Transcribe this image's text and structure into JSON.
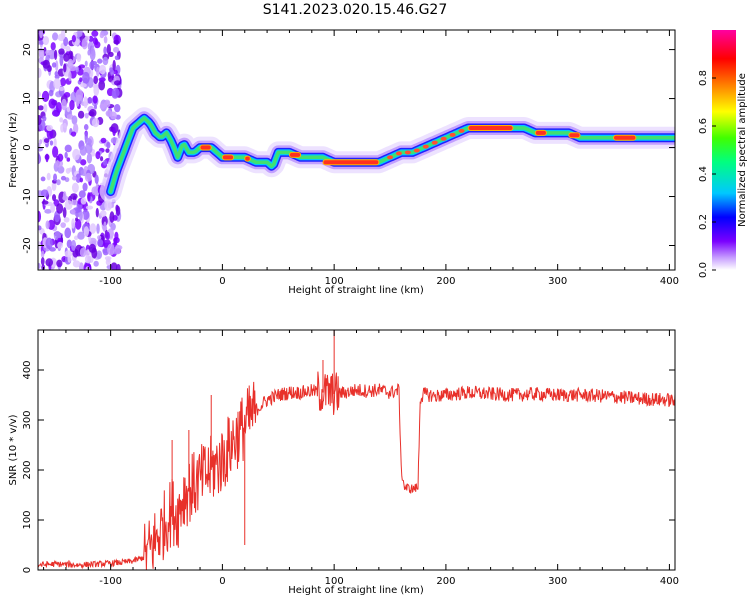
{
  "figure": {
    "title": "S141.2023.020.15.46.G27"
  },
  "chart_data": [
    {
      "type": "heatmap",
      "title": "S141.2023.020.15.46.G27",
      "xlabel": "Height of straight line (km)",
      "ylabel": "Frequency (Hz)",
      "xlim": [
        -165,
        405
      ],
      "ylim": [
        -25,
        24
      ],
      "x_ticks": [
        -100,
        0,
        100,
        200,
        300,
        400
      ],
      "x_tick_labels": [
        "-100",
        "0",
        "100",
        "200",
        "300",
        "400"
      ],
      "y_ticks": [
        -20,
        -10,
        0,
        10,
        20
      ],
      "y_tick_labels": [
        "-20",
        "-10",
        "0",
        "10",
        "20"
      ],
      "colorbar": {
        "label": "Normalized spectral amplitude",
        "range": [
          0,
          1
        ],
        "ticks": [
          0.0,
          0.2,
          0.4,
          0.6,
          0.8
        ],
        "tick_labels": [
          "0.0",
          "0.2",
          "0.4",
          "0.6",
          "0.8"
        ],
        "colors": [
          "#ffffff",
          "#c8a0ff",
          "#7a00ff",
          "#0000ff",
          "#00c8ff",
          "#00ff80",
          "#40ff00",
          "#ffff00",
          "#ff8000",
          "#ff0000",
          "#ff00a0"
        ]
      },
      "doppler_trace": {
        "height_km": [
          -100,
          -95,
          -90,
          -85,
          -80,
          -75,
          -70,
          -65,
          -60,
          -55,
          -50,
          -45,
          -40,
          -35,
          -30,
          -25,
          -20,
          -10,
          0,
          10,
          20,
          30,
          40,
          45,
          50,
          60,
          70,
          80,
          90,
          100,
          110,
          120,
          130,
          140,
          150,
          160,
          170,
          180,
          190,
          200,
          210,
          220,
          230,
          240,
          250,
          260,
          270,
          280,
          290,
          300,
          310,
          320,
          330,
          340,
          350,
          360,
          370,
          380,
          390,
          400
        ],
        "frequency_hz": [
          -9,
          -5,
          -2,
          1,
          4,
          5,
          6,
          5,
          3,
          2,
          3,
          1,
          -2,
          1,
          -1,
          -1,
          0,
          0,
          -2,
          -2,
          -2,
          -3,
          -3,
          -4,
          -1,
          -1,
          -2,
          -2,
          -2,
          -3,
          -3,
          -3,
          -3,
          -3,
          -2,
          -1,
          -1,
          0,
          1,
          2,
          3,
          4,
          4,
          4,
          4,
          4,
          4,
          3,
          3,
          3,
          3,
          2,
          2,
          2,
          2,
          2,
          2,
          2,
          2,
          2
        ]
      },
      "high_amplitude_segments_km": [
        [
          -20,
          -10
        ],
        [
          0,
          10
        ],
        [
          20,
          25
        ],
        [
          60,
          70
        ],
        [
          90,
          140
        ],
        [
          220,
          260
        ],
        [
          280,
          290
        ],
        [
          310,
          320
        ],
        [
          350,
          370
        ]
      ],
      "noise_region_km": [
        -165,
        -100
      ]
    },
    {
      "type": "line",
      "xlabel": "Height of straight line (km)",
      "ylabel": "SNR (10 * v/v)",
      "xlim": [
        -165,
        405
      ],
      "ylim": [
        0,
        480
      ],
      "x_ticks": [
        -100,
        0,
        100,
        200,
        300,
        400
      ],
      "x_tick_labels": [
        "-100",
        "0",
        "100",
        "200",
        "300",
        "400"
      ],
      "y_ticks": [
        0,
        100,
        200,
        300,
        400
      ],
      "y_tick_labels": [
        "0",
        "100",
        "200",
        "300",
        "400"
      ],
      "color": "#e8302a",
      "series": [
        {
          "x": [
            -165,
            -150,
            -130,
            -110,
            -90,
            -80,
            -70,
            -65,
            -60,
            -55,
            -50,
            -45,
            -40,
            -35,
            -30,
            -25,
            -20,
            -15,
            -10,
            -5,
            0,
            5,
            10,
            15,
            20,
            25,
            30,
            35,
            40,
            45,
            50,
            60,
            70,
            80,
            90,
            100,
            110,
            120,
            130,
            140,
            150,
            155,
            158,
            160,
            163,
            170,
            175,
            177,
            180,
            190,
            200,
            220,
            240,
            260,
            280,
            300,
            320,
            340,
            360,
            380,
            400,
            405
          ],
          "y": [
            10,
            12,
            10,
            12,
            15,
            18,
            25,
            40,
            60,
            80,
            100,
            120,
            110,
            150,
            160,
            170,
            180,
            190,
            200,
            210,
            220,
            240,
            260,
            275,
            290,
            305,
            320,
            330,
            340,
            345,
            350,
            355,
            355,
            358,
            355,
            352,
            355,
            360,
            358,
            360,
            355,
            358,
            360,
            200,
            165,
            162,
            165,
            340,
            352,
            348,
            350,
            355,
            352,
            350,
            352,
            350,
            350,
            348,
            345,
            342,
            340,
            338
          ]
        }
      ],
      "spikes": [
        {
          "x": -45,
          "y": 260
        },
        {
          "x": -30,
          "y": 280
        },
        {
          "x": -10,
          "y": 350
        },
        {
          "x": 100,
          "y": 480
        },
        {
          "x": 90,
          "y": 420
        },
        {
          "x": 20,
          "y": 50
        }
      ]
    }
  ]
}
